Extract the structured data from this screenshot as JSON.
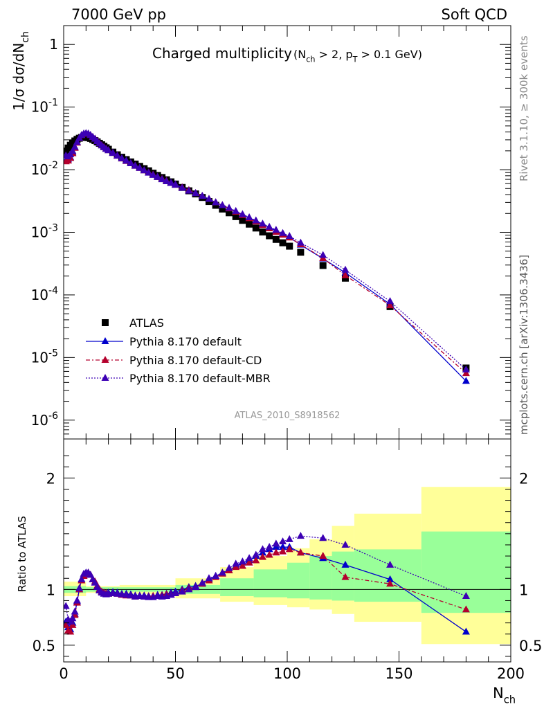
{
  "header": {
    "left": "7000 GeV pp",
    "right": "Soft QCD"
  },
  "side_labels": {
    "rivet": "Rivet 3.1.10, ≥ 300k events",
    "mcplots": "mcplots.cern.ch [arXiv:1306.3436]"
  },
  "colors": {
    "atlas": "#000000",
    "pythia_default": "#0000cc",
    "pythia_cd": "#b4002d",
    "pythia_mbr": "#3c00b4",
    "band_outer": "#ffff99",
    "band_inner": "#99ff99"
  },
  "chart_data": [
    {
      "type": "scatter",
      "title": "Charged multiplicity",
      "title_suffix": "(N_ch > 2, p_T > 0.1 GeV)",
      "ylabel": "1/σ dσ/dN_ch",
      "xlim": [
        0,
        200
      ],
      "ylim": [
        5e-07,
        2
      ],
      "yscale": "log",
      "y_tick_labels": [
        "1",
        "10^-1",
        "10^-2",
        "10^-3",
        "10^-4",
        "10^-5",
        "10^-6"
      ],
      "watermark": "ATLAS_2010_S8918562",
      "legend_position": "bottom-left",
      "x": [
        1,
        2,
        3,
        4,
        5,
        6,
        7,
        8,
        9,
        10,
        11,
        12,
        13,
        14,
        15,
        16,
        17,
        18,
        19,
        20,
        22,
        24,
        26,
        28,
        30,
        32,
        34,
        36,
        38,
        40,
        42,
        44,
        46,
        48,
        50,
        53,
        56,
        59,
        62,
        65,
        68,
        71,
        74,
        77,
        80,
        83,
        86,
        89,
        92,
        95,
        98,
        101,
        106,
        116,
        126,
        146,
        180
      ],
      "series": [
        {
          "name": "ATLAS",
          "marker": "square",
          "values": [
            0.0198,
            0.0222,
            0.0246,
            0.0268,
            0.0288,
            0.0305,
            0.0318,
            0.0327,
            0.0331,
            0.033,
            0.0325,
            0.0316,
            0.0305,
            0.0292,
            0.0278,
            0.0264,
            0.025,
            0.0237,
            0.0224,
            0.0212,
            0.0191,
            0.0173,
            0.0158,
            0.0145,
            0.0133,
            0.0123,
            0.0113,
            0.0104,
            0.0096,
            0.0088,
            0.0081,
            0.0075,
            0.0069,
            0.0064,
            0.0059,
            0.0052,
            0.0046,
            0.0041,
            0.0036,
            0.0031,
            0.0027,
            0.00235,
            0.00205,
            0.00178,
            0.00155,
            0.00135,
            0.00117,
            0.00101,
            0.00088,
            0.00077,
            0.00068,
            0.0006,
            0.00048,
            0.000295,
            0.000185,
            6.5e-05,
            6.8e-06
          ]
        },
        {
          "name": "Pythia 8.170 default",
          "marker": "triangle",
          "line": "solid",
          "values": [
            0.0141,
            0.0146,
            0.0157,
            0.0188,
            0.0224,
            0.0271,
            0.0318,
            0.0355,
            0.0374,
            0.0379,
            0.0374,
            0.0356,
            0.0333,
            0.0311,
            0.0287,
            0.0264,
            0.0245,
            0.0229,
            0.0216,
            0.0205,
            0.0186,
            0.0168,
            0.0152,
            0.0139,
            0.0127,
            0.0116,
            0.0107,
            0.0098,
            0.009,
            0.0083,
            0.0077,
            0.0071,
            0.0066,
            0.0062,
            0.0058,
            0.0052,
            0.0047,
            0.0042,
            0.0038,
            0.0034,
            0.003,
            0.0027,
            0.0024,
            0.00215,
            0.00192,
            0.0017,
            0.00152,
            0.00135,
            0.0012,
            0.00106,
            0.00094,
            0.00083,
            0.00063,
            0.000379,
            0.000226,
            7.1e-05,
            4.2e-06
          ]
        },
        {
          "name": "Pythia 8.170 default-CD",
          "marker": "triangle",
          "line": "dashdot",
          "values": [
            0.0135,
            0.0139,
            0.0153,
            0.0182,
            0.0222,
            0.0269,
            0.0318,
            0.0353,
            0.0372,
            0.0377,
            0.0373,
            0.0356,
            0.0333,
            0.0311,
            0.0287,
            0.0264,
            0.0245,
            0.0229,
            0.0216,
            0.0204,
            0.0184,
            0.0166,
            0.015,
            0.0137,
            0.0126,
            0.0115,
            0.0106,
            0.0097,
            0.009,
            0.0083,
            0.0076,
            0.0071,
            0.0066,
            0.0061,
            0.0057,
            0.0052,
            0.0047,
            0.0042,
            0.0038,
            0.0034,
            0.003,
            0.0027,
            0.0024,
            0.00212,
            0.00188,
            0.00167,
            0.00148,
            0.0013,
            0.00115,
            0.00101,
            0.00091,
            0.00082,
            0.00064,
            0.000385,
            0.000205,
            6.8e-05,
            5.6e-06
          ]
        },
        {
          "name": "Pythia 8.170 default-MBR",
          "marker": "triangle",
          "line": "dotted",
          "values": [
            0.0168,
            0.0162,
            0.0175,
            0.0198,
            0.0231,
            0.0276,
            0.032,
            0.0356,
            0.0376,
            0.0381,
            0.0375,
            0.0357,
            0.0333,
            0.031,
            0.0285,
            0.0262,
            0.0243,
            0.0227,
            0.0214,
            0.0203,
            0.0184,
            0.0166,
            0.0151,
            0.0138,
            0.0126,
            0.0115,
            0.0106,
            0.0097,
            0.0089,
            0.0082,
            0.0076,
            0.007,
            0.0065,
            0.0061,
            0.0057,
            0.0051,
            0.0046,
            0.0042,
            0.0038,
            0.0034,
            0.003,
            0.0027,
            0.00245,
            0.00218,
            0.00194,
            0.00173,
            0.00154,
            0.00137,
            0.00122,
            0.00109,
            0.00097,
            0.00087,
            0.00068,
            0.000432,
            0.000251,
            7.9e-05,
            6.4e-06
          ]
        }
      ]
    },
    {
      "type": "scatter",
      "ylabel": "Ratio to ATLAS",
      "xlabel": "N_ch",
      "xlim": [
        0,
        200
      ],
      "ylim": [
        0.35,
        2.35
      ],
      "x_tick_labels": [
        "0",
        "50",
        "100",
        "150",
        "200"
      ],
      "y_tick_labels": [
        "0.5",
        "1",
        "2"
      ],
      "reference_line": 1,
      "bands": [
        {
          "x_from": 0,
          "x_to": 10,
          "inner": [
            0.97,
            1.03
          ],
          "outer": [
            0.94,
            1.07
          ]
        },
        {
          "x_from": 10,
          "x_to": 25,
          "inner": [
            0.98,
            1.02
          ],
          "outer": [
            0.97,
            1.03
          ]
        },
        {
          "x_from": 25,
          "x_to": 50,
          "inner": [
            0.98,
            1.02
          ],
          "outer": [
            0.96,
            1.04
          ]
        },
        {
          "x_from": 50,
          "x_to": 70,
          "inner": [
            0.96,
            1.04
          ],
          "outer": [
            0.92,
            1.1
          ]
        },
        {
          "x_from": 70,
          "x_to": 85,
          "inner": [
            0.94,
            1.1
          ],
          "outer": [
            0.89,
            1.2
          ]
        },
        {
          "x_from": 85,
          "x_to": 100,
          "inner": [
            0.93,
            1.18
          ],
          "outer": [
            0.86,
            1.3
          ]
        },
        {
          "x_from": 100,
          "x_to": 110,
          "inner": [
            0.92,
            1.24
          ],
          "outer": [
            0.84,
            1.37
          ]
        },
        {
          "x_from": 110,
          "x_to": 120,
          "inner": [
            0.91,
            1.3
          ],
          "outer": [
            0.82,
            1.45
          ]
        },
        {
          "x_from": 120,
          "x_to": 130,
          "inner": [
            0.9,
            1.34
          ],
          "outer": [
            0.78,
            1.57
          ]
        },
        {
          "x_from": 130,
          "x_to": 160,
          "inner": [
            0.89,
            1.36
          ],
          "outer": [
            0.71,
            1.68
          ]
        },
        {
          "x_from": 160,
          "x_to": 200,
          "inner": [
            0.79,
            1.52
          ],
          "outer": [
            0.51,
            1.92
          ]
        }
      ],
      "x": [
        1,
        2,
        3,
        4,
        5,
        6,
        7,
        8,
        9,
        10,
        11,
        12,
        13,
        14,
        15,
        16,
        17,
        18,
        19,
        20,
        22,
        24,
        26,
        28,
        30,
        32,
        34,
        36,
        38,
        40,
        42,
        44,
        46,
        48,
        50,
        53,
        56,
        59,
        62,
        65,
        68,
        71,
        74,
        77,
        80,
        83,
        86,
        89,
        92,
        95,
        98,
        101,
        106,
        116,
        126,
        146,
        180
      ],
      "series": [
        {
          "name": "Pythia 8.170 default",
          "values": [
            0.71,
            0.66,
            0.64,
            0.7,
            0.78,
            0.89,
            1.0,
            1.09,
            1.13,
            1.15,
            1.15,
            1.13,
            1.09,
            1.07,
            1.03,
            1.0,
            0.98,
            0.97,
            0.965,
            0.97,
            0.975,
            0.97,
            0.96,
            0.96,
            0.955,
            0.945,
            0.945,
            0.945,
            0.94,
            0.94,
            0.95,
            0.95,
            0.96,
            0.97,
            0.98,
            1.0,
            1.02,
            1.03,
            1.05,
            1.09,
            1.12,
            1.15,
            1.17,
            1.21,
            1.24,
            1.26,
            1.3,
            1.33,
            1.36,
            1.38,
            1.38,
            1.38,
            1.33,
            1.28,
            1.22,
            1.09,
            0.62
          ]
        },
        {
          "name": "Pythia 8.170 default-CD",
          "values": [
            0.68,
            0.63,
            0.62,
            0.68,
            0.77,
            0.88,
            1.0,
            1.08,
            1.12,
            1.14,
            1.15,
            1.13,
            1.09,
            1.07,
            1.03,
            1.0,
            0.98,
            0.97,
            0.965,
            0.96,
            0.965,
            0.96,
            0.95,
            0.945,
            0.945,
            0.935,
            0.94,
            0.935,
            0.935,
            0.94,
            0.94,
            0.945,
            0.955,
            0.955,
            0.965,
            0.99,
            1.01,
            1.02,
            1.05,
            1.08,
            1.11,
            1.14,
            1.17,
            1.2,
            1.21,
            1.24,
            1.26,
            1.29,
            1.31,
            1.33,
            1.34,
            1.36,
            1.33,
            1.3,
            1.11,
            1.05,
            0.82
          ]
        },
        {
          "name": "Pythia 8.170 default-MBR",
          "values": [
            0.85,
            0.73,
            0.71,
            0.74,
            0.8,
            0.9,
            1.01,
            1.09,
            1.14,
            1.15,
            1.15,
            1.13,
            1.09,
            1.06,
            1.02,
            0.99,
            0.97,
            0.96,
            0.955,
            0.96,
            0.965,
            0.96,
            0.955,
            0.95,
            0.945,
            0.935,
            0.94,
            0.935,
            0.93,
            0.93,
            0.94,
            0.935,
            0.94,
            0.95,
            0.965,
            0.98,
            1.0,
            1.02,
            1.06,
            1.1,
            1.12,
            1.15,
            1.19,
            1.23,
            1.25,
            1.28,
            1.31,
            1.36,
            1.38,
            1.41,
            1.43,
            1.45,
            1.48,
            1.46,
            1.4,
            1.22,
            0.94
          ]
        }
      ]
    }
  ]
}
